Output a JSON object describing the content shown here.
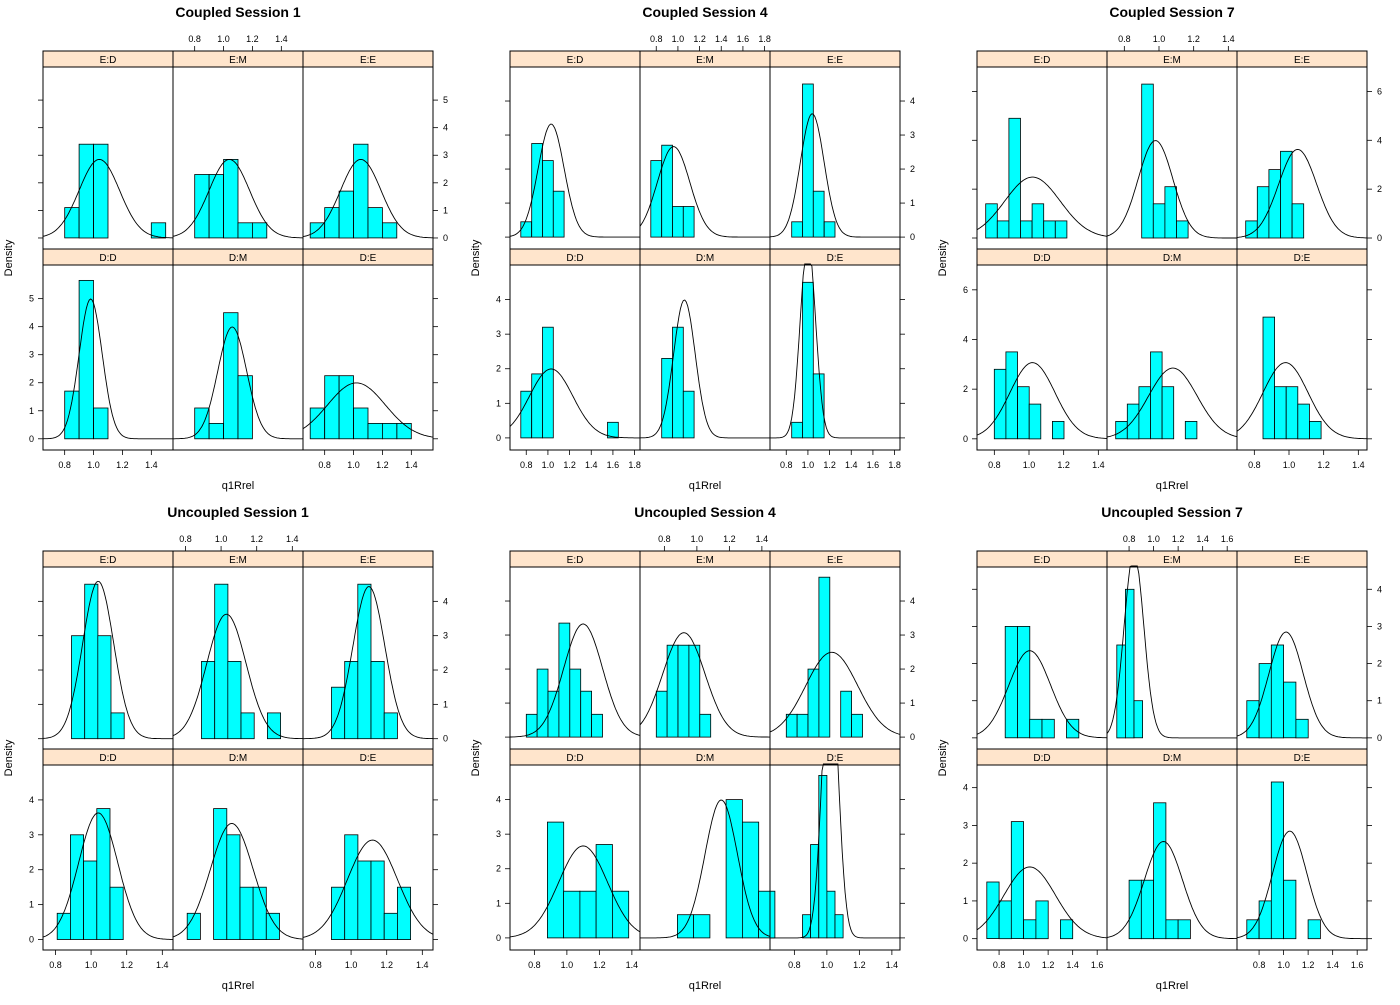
{
  "chart_data": [
    {
      "type": "bar",
      "title": "Coupled Session 1",
      "xlabel": "q1Rrel",
      "ylabel": "Density",
      "xlim": [
        0.65,
        1.55
      ],
      "ylim": [
        -0.4,
        6.2
      ],
      "xticks": [
        "0.8",
        "1.0",
        "1.2",
        "1.4"
      ],
      "yticks": [
        "0",
        "1",
        "2",
        "3",
        "4",
        "5"
      ],
      "panels": [
        {
          "strip": "E:D",
          "binStart": 0.8,
          "binWidth": 0.1,
          "values": [
            1.1,
            3.4,
            3.4,
            0,
            0,
            0,
            0.55
          ],
          "normal": {
            "mean": 1.04,
            "sd": 0.14
          }
        },
        {
          "strip": "E:M",
          "binStart": 0.8,
          "binWidth": 0.1,
          "values": [
            2.3,
            2.3,
            2.85,
            0.55,
            0.55
          ],
          "normal": {
            "mean": 1.04,
            "sd": 0.14
          }
        },
        {
          "strip": "E:E",
          "binStart": 0.7,
          "binWidth": 0.1,
          "values": [
            0.55,
            1.1,
            1.7,
            3.4,
            1.1,
            0.55
          ],
          "normal": {
            "mean": 1.05,
            "sd": 0.14
          }
        },
        {
          "strip": "D:D",
          "binStart": 0.8,
          "binWidth": 0.1,
          "values": [
            1.7,
            5.65,
            1.1
          ],
          "normal": {
            "mean": 0.98,
            "sd": 0.08
          }
        },
        {
          "strip": "D:M",
          "binStart": 0.8,
          "binWidth": 0.1,
          "values": [
            1.1,
            0.55,
            4.5,
            2.25
          ],
          "normal": {
            "mean": 1.06,
            "sd": 0.1
          }
        },
        {
          "strip": "D:E",
          "binStart": 0.7,
          "binWidth": 0.1,
          "values": [
            1.1,
            2.25,
            2.25,
            1.1,
            0.55,
            0.55,
            0.55
          ],
          "normal": {
            "mean": 1.02,
            "sd": 0.2
          }
        }
      ]
    },
    {
      "type": "bar",
      "title": "Coupled Session 4",
      "xlabel": "q1Rrel",
      "ylabel": "Density",
      "xlim": [
        0.65,
        1.85
      ],
      "ylim": [
        -0.35,
        5.0
      ],
      "xticks": [
        "0.8",
        "1.0",
        "1.2",
        "1.4",
        "1.6",
        "1.8"
      ],
      "yticks": [
        "0",
        "1",
        "2",
        "3",
        "4"
      ],
      "panels": [
        {
          "strip": "E:D",
          "binStart": 0.75,
          "binWidth": 0.1,
          "values": [
            0.45,
            2.75,
            2.25,
            1.35
          ],
          "normal": {
            "mean": 1.03,
            "sd": 0.12
          }
        },
        {
          "strip": "E:M",
          "binStart": 0.75,
          "binWidth": 0.1,
          "values": [
            2.25,
            2.7,
            0.9,
            0.9
          ],
          "normal": {
            "mean": 0.96,
            "sd": 0.15
          }
        },
        {
          "strip": "E:E",
          "binStart": 0.85,
          "binWidth": 0.1,
          "values": [
            0.45,
            4.5,
            1.35,
            0.45
          ],
          "normal": {
            "mean": 1.04,
            "sd": 0.11
          }
        },
        {
          "strip": "D:D",
          "binStart": 0.75,
          "binWidth": 0.1,
          "values": [
            1.35,
            1.85,
            3.2,
            0,
            0,
            0,
            0,
            0,
            0.45
          ],
          "normal": {
            "mean": 1.03,
            "sd": 0.2
          }
        },
        {
          "strip": "D:M",
          "binStart": 0.85,
          "binWidth": 0.1,
          "values": [
            2.3,
            3.2,
            1.35
          ],
          "normal": {
            "mean": 1.06,
            "sd": 0.1
          }
        },
        {
          "strip": "D:E",
          "binStart": 0.85,
          "binWidth": 0.1,
          "values": [
            0.45,
            4.5,
            1.85
          ],
          "normal": {
            "mean": 1.0,
            "sd": 0.07
          }
        }
      ]
    },
    {
      "type": "bar",
      "title": "Coupled Session 7",
      "xlabel": "q1Rrel",
      "ylabel": "Density",
      "xlim": [
        0.7,
        1.45
      ],
      "ylim": [
        -0.45,
        7.0
      ],
      "xticks": [
        "0.8",
        "1.0",
        "1.2",
        "1.4"
      ],
      "yticks": [
        "0",
        "2",
        "4",
        "6"
      ],
      "panels": [
        {
          "strip": "E:D",
          "binStart": 0.75,
          "binWidth": 0.067,
          "values": [
            1.4,
            0.7,
            4.9,
            0.7,
            1.4,
            0.7,
            0.7
          ],
          "normal": {
            "mean": 1.02,
            "sd": 0.16
          }
        },
        {
          "strip": "E:M",
          "binStart": 0.9,
          "binWidth": 0.067,
          "values": [
            6.3,
            1.4,
            2.1,
            0.7
          ],
          "normal": {
            "mean": 0.98,
            "sd": 0.1
          }
        },
        {
          "strip": "E:E",
          "binStart": 0.75,
          "binWidth": 0.067,
          "values": [
            0.7,
            2.1,
            2.8,
            3.55,
            1.4
          ],
          "normal": {
            "mean": 1.05,
            "sd": 0.11
          }
        },
        {
          "strip": "D:D",
          "binStart": 0.8,
          "binWidth": 0.067,
          "values": [
            2.8,
            3.5,
            2.1,
            1.4,
            0,
            0.7
          ],
          "normal": {
            "mean": 1.02,
            "sd": 0.13
          }
        },
        {
          "strip": "D:M",
          "binStart": 0.75,
          "binWidth": 0.067,
          "values": [
            0.7,
            1.4,
            2.1,
            3.5,
            2.1,
            0,
            0.7
          ],
          "normal": {
            "mean": 1.08,
            "sd": 0.14
          }
        },
        {
          "strip": "D:E",
          "binStart": 0.85,
          "binWidth": 0.067,
          "values": [
            4.9,
            2.1,
            2.1,
            1.4,
            0.7
          ],
          "normal": {
            "mean": 0.98,
            "sd": 0.13
          }
        }
      ]
    },
    {
      "type": "bar",
      "title": "Uncoupled Session 1",
      "xlabel": "q1Rrel",
      "ylabel": "Density",
      "xlim": [
        0.73,
        1.46
      ],
      "ylim": [
        -0.3,
        5.0
      ],
      "xticks": [
        "0.8",
        "1.0",
        "1.2",
        "1.4"
      ],
      "yticks": [
        "0",
        "1",
        "2",
        "3",
        "4"
      ],
      "panels": [
        {
          "strip": "E:D",
          "binStart": 0.89,
          "binWidth": 0.074,
          "values": [
            3.0,
            4.5,
            3.0,
            0.75
          ],
          "normal": {
            "mean": 1.04,
            "sd": 0.087
          }
        },
        {
          "strip": "E:M",
          "binStart": 0.89,
          "binWidth": 0.074,
          "values": [
            2.25,
            4.5,
            2.25,
            0.75,
            0,
            0.75
          ],
          "normal": {
            "mean": 1.03,
            "sd": 0.11
          }
        },
        {
          "strip": "E:E",
          "binStart": 0.89,
          "binWidth": 0.074,
          "values": [
            1.5,
            2.25,
            4.5,
            2.25,
            0.75
          ],
          "normal": {
            "mean": 1.1,
            "sd": 0.09
          }
        },
        {
          "strip": "D:D",
          "binStart": 0.81,
          "binWidth": 0.074,
          "values": [
            0.75,
            3.0,
            2.25,
            3.75,
            1.5
          ],
          "normal": {
            "mean": 1.04,
            "sd": 0.11
          }
        },
        {
          "strip": "D:M",
          "binStart": 0.81,
          "binWidth": 0.074,
          "values": [
            0.75,
            0,
            3.75,
            3.0,
            1.5,
            1.5,
            0.75
          ],
          "normal": {
            "mean": 1.06,
            "sd": 0.12
          }
        },
        {
          "strip": "D:E",
          "binStart": 0.89,
          "binWidth": 0.074,
          "values": [
            1.5,
            3.0,
            2.25,
            2.25,
            0.75,
            1.5
          ],
          "normal": {
            "mean": 1.12,
            "sd": 0.14
          }
        }
      ]
    },
    {
      "type": "bar",
      "title": "Uncoupled Session 4",
      "xlabel": "q1Rrel",
      "ylabel": "Density",
      "xlim": [
        0.65,
        1.45
      ],
      "ylim": [
        -0.35,
        5.0
      ],
      "xticks": [
        "0.8",
        "1.0",
        "1.2",
        "1.4"
      ],
      "yticks": [
        "0",
        "1",
        "2",
        "3",
        "4"
      ],
      "panels": [
        {
          "strip": "E:D",
          "binStart": 0.75,
          "binWidth": 0.067,
          "values": [
            0.67,
            2.0,
            1.35,
            3.35,
            2.0,
            1.35,
            0.67
          ],
          "normal": {
            "mean": 1.1,
            "sd": 0.12
          }
        },
        {
          "strip": "E:M",
          "binStart": 0.75,
          "binWidth": 0.067,
          "values": [
            1.35,
            2.7,
            2.7,
            2.7,
            0.67
          ],
          "normal": {
            "mean": 0.92,
            "sd": 0.13
          }
        },
        {
          "strip": "E:E",
          "binStart": 0.75,
          "binWidth": 0.067,
          "values": [
            0.67,
            0.67,
            2.0,
            4.7,
            0,
            1.35,
            0.67
          ],
          "normal": {
            "mean": 1.03,
            "sd": 0.16
          }
        },
        {
          "strip": "D:D",
          "binStart": 0.88,
          "binWidth": 0.1,
          "values": [
            3.35,
            1.35,
            1.35,
            2.7,
            1.35
          ],
          "normal": {
            "mean": 1.1,
            "sd": 0.15
          }
        },
        {
          "strip": "D:M",
          "binStart": 0.88,
          "binWidth": 0.1,
          "values": [
            0.67,
            0.67,
            0,
            4.0,
            3.35,
            1.35
          ],
          "normal": {
            "mean": 1.15,
            "sd": 0.1
          }
        },
        {
          "strip": "D:E",
          "binStart": 0.85,
          "binWidth": 0.05,
          "values": [
            0.67,
            2.7,
            4.7,
            1.35,
            0.67
          ],
          "normal": {
            "mean": 1.02,
            "sd": 0.048
          }
        }
      ]
    },
    {
      "type": "bar",
      "title": "Uncoupled Session 7",
      "xlabel": "q1Rrel",
      "ylabel": "Density",
      "xlim": [
        0.62,
        1.68
      ],
      "ylim": [
        -0.3,
        4.6
      ],
      "xticks": [
        "0.8",
        "1.0",
        "1.2",
        "1.4",
        "1.6"
      ],
      "yticks": [
        "0",
        "1",
        "2",
        "3",
        "4"
      ],
      "panels": [
        {
          "strip": "E:D",
          "binStart": 0.85,
          "binWidth": 0.1,
          "values": [
            3.0,
            3.0,
            0.5,
            0.5,
            0,
            0.5
          ],
          "normal": {
            "mean": 1.05,
            "sd": 0.17
          }
        },
        {
          "strip": "E:M",
          "binStart": 0.7,
          "binWidth": 0.07,
          "values": [
            2.5,
            4.0,
            1.0
          ],
          "normal": {
            "mean": 0.84,
            "sd": 0.08
          }
        },
        {
          "strip": "E:E",
          "binStart": 0.7,
          "binWidth": 0.1,
          "values": [
            1.0,
            2.0,
            2.5,
            1.5,
            0.5
          ],
          "normal": {
            "mean": 1.02,
            "sd": 0.14
          }
        },
        {
          "strip": "D:D",
          "binStart": 0.7,
          "binWidth": 0.1,
          "values": [
            1.5,
            1.0,
            3.1,
            0.5,
            1.0,
            0,
            0.5
          ],
          "normal": {
            "mean": 1.05,
            "sd": 0.21
          }
        },
        {
          "strip": "D:M",
          "binStart": 0.8,
          "binWidth": 0.1,
          "values": [
            1.55,
            1.55,
            3.6,
            0.5,
            0.5
          ],
          "normal": {
            "mean": 1.08,
            "sd": 0.155
          }
        },
        {
          "strip": "D:E",
          "binStart": 0.7,
          "binWidth": 0.1,
          "values": [
            0.5,
            1.0,
            4.15,
            1.55,
            0,
            0.5
          ],
          "normal": {
            "mean": 1.05,
            "sd": 0.14
          }
        }
      ]
    }
  ]
}
